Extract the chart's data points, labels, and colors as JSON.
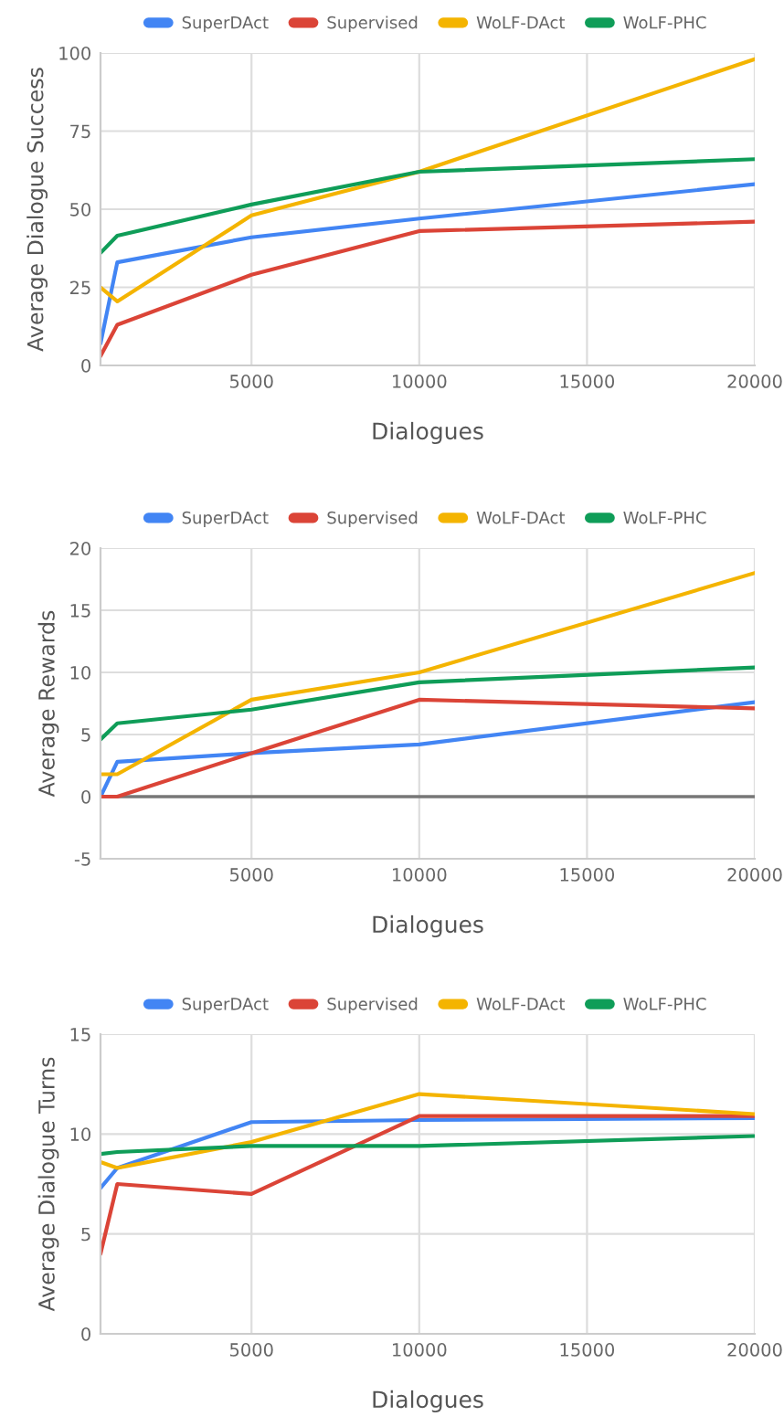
{
  "chart_data": [
    {
      "type": "line",
      "xlabel": "Dialogues",
      "ylabel": "Average Dialogue Success",
      "x": [
        500,
        1000,
        5000,
        10000,
        20000
      ],
      "xlim": [
        500,
        20000
      ],
      "xticks": [
        5000,
        10000,
        15000,
        20000
      ],
      "ylim": [
        0,
        100
      ],
      "yticks": [
        0,
        25,
        50,
        75,
        100
      ],
      "grid": true,
      "legend": "top",
      "marker": "none",
      "line_style": "solid",
      "series": [
        {
          "name": "SuperDAct",
          "color": "#4285f4",
          "values": [
            7,
            33,
            41,
            47,
            58
          ]
        },
        {
          "name": "Supervised",
          "color": "#db4437",
          "values": [
            3,
            13,
            29,
            43,
            46
          ]
        },
        {
          "name": "WoLF-DAct",
          "color": "#f4b400",
          "values": [
            25,
            20.5,
            48,
            62,
            98
          ]
        },
        {
          "name": "WoLF-PHC",
          "color": "#0f9d58",
          "values": [
            36,
            41.5,
            51.5,
            62,
            66
          ]
        }
      ]
    },
    {
      "type": "line",
      "xlabel": "Dialogues",
      "ylabel": "Average Rewards",
      "x": [
        500,
        1000,
        5000,
        10000,
        20000
      ],
      "xlim": [
        500,
        20000
      ],
      "xticks": [
        5000,
        10000,
        15000,
        20000
      ],
      "ylim": [
        -5,
        20
      ],
      "yticks": [
        -5,
        0,
        5,
        10,
        15,
        20
      ],
      "grid": true,
      "legend": "top",
      "marker": "none",
      "line_style": "solid",
      "ref_lines": [
        {
          "axis": "y",
          "value": 0,
          "color": "#777777"
        }
      ],
      "series": [
        {
          "name": "SuperDAct",
          "color": "#4285f4",
          "values": [
            0,
            2.8,
            3.5,
            4.2,
            7.6
          ]
        },
        {
          "name": "Supervised",
          "color": "#db4437",
          "values": [
            0,
            0,
            3.5,
            7.8,
            7.1
          ]
        },
        {
          "name": "WoLF-DAct",
          "color": "#f4b400",
          "values": [
            1.8,
            1.8,
            7.8,
            10,
            18
          ]
        },
        {
          "name": "WoLF-PHC",
          "color": "#0f9d58",
          "values": [
            4.6,
            5.9,
            7.0,
            9.2,
            10.4
          ]
        }
      ]
    },
    {
      "type": "line",
      "xlabel": "Dialogues",
      "ylabel": "Average Dialogue Turns",
      "x": [
        500,
        1000,
        5000,
        10000,
        20000
      ],
      "xlim": [
        500,
        20000
      ],
      "xticks": [
        5000,
        10000,
        15000,
        20000
      ],
      "ylim": [
        0,
        15
      ],
      "yticks": [
        0,
        5,
        10,
        15
      ],
      "grid": true,
      "legend": "top",
      "marker": "none",
      "line_style": "solid",
      "series": [
        {
          "name": "SuperDAct",
          "color": "#4285f4",
          "values": [
            7.3,
            8.3,
            10.6,
            10.7,
            10.8
          ]
        },
        {
          "name": "Supervised",
          "color": "#db4437",
          "values": [
            4.0,
            7.5,
            7.0,
            10.9,
            10.9
          ]
        },
        {
          "name": "WoLF-DAct",
          "color": "#f4b400",
          "values": [
            8.6,
            8.3,
            9.6,
            12.0,
            11.0
          ]
        },
        {
          "name": "WoLF-PHC",
          "color": "#0f9d58",
          "values": [
            9.0,
            9.1,
            9.4,
            9.4,
            9.9
          ]
        }
      ]
    }
  ]
}
